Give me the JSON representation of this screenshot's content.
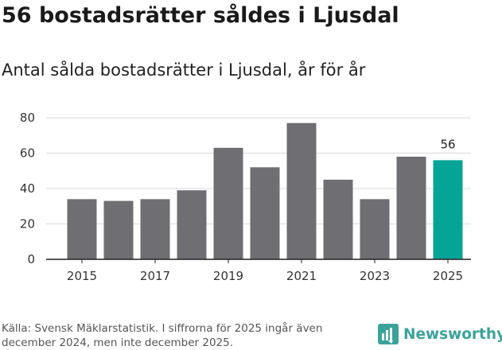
{
  "title": "56 bostadsrätter såldes i Ljusdal",
  "subtitle": "Antal sålda bostadsrätter i Ljusdal, år för år",
  "source": "Källa: Svensk Mäklarstatistik. I siffrorna för 2025 ingår även december 2024, men inte december 2025.",
  "brand": {
    "name": "Newsworthy",
    "icon": "newsworthy-logo-icon"
  },
  "colors": {
    "bar": "#6f6e72",
    "highlight": "#04a496",
    "grid": "#d9d9d9",
    "axis": "#222222",
    "brand": "#3ba29a"
  },
  "chart_data": {
    "type": "bar",
    "title": "Antal sålda bostadsrätter i Ljusdal, år för år",
    "categories": [
      "2015",
      "2016",
      "2017",
      "2018",
      "2019",
      "2020",
      "2021",
      "2022",
      "2023",
      "2024",
      "2025"
    ],
    "values": [
      34,
      33,
      34,
      39,
      63,
      52,
      77,
      45,
      34,
      58,
      56
    ],
    "x_tick_labels": [
      "2015",
      "2017",
      "2019",
      "2021",
      "2023",
      "2025"
    ],
    "y_ticks": [
      "0",
      "20",
      "40",
      "60",
      "80"
    ],
    "ylim": [
      0,
      85
    ],
    "highlight_category": "2025",
    "highlight_label": "56",
    "xlabel": "",
    "ylabel": ""
  }
}
